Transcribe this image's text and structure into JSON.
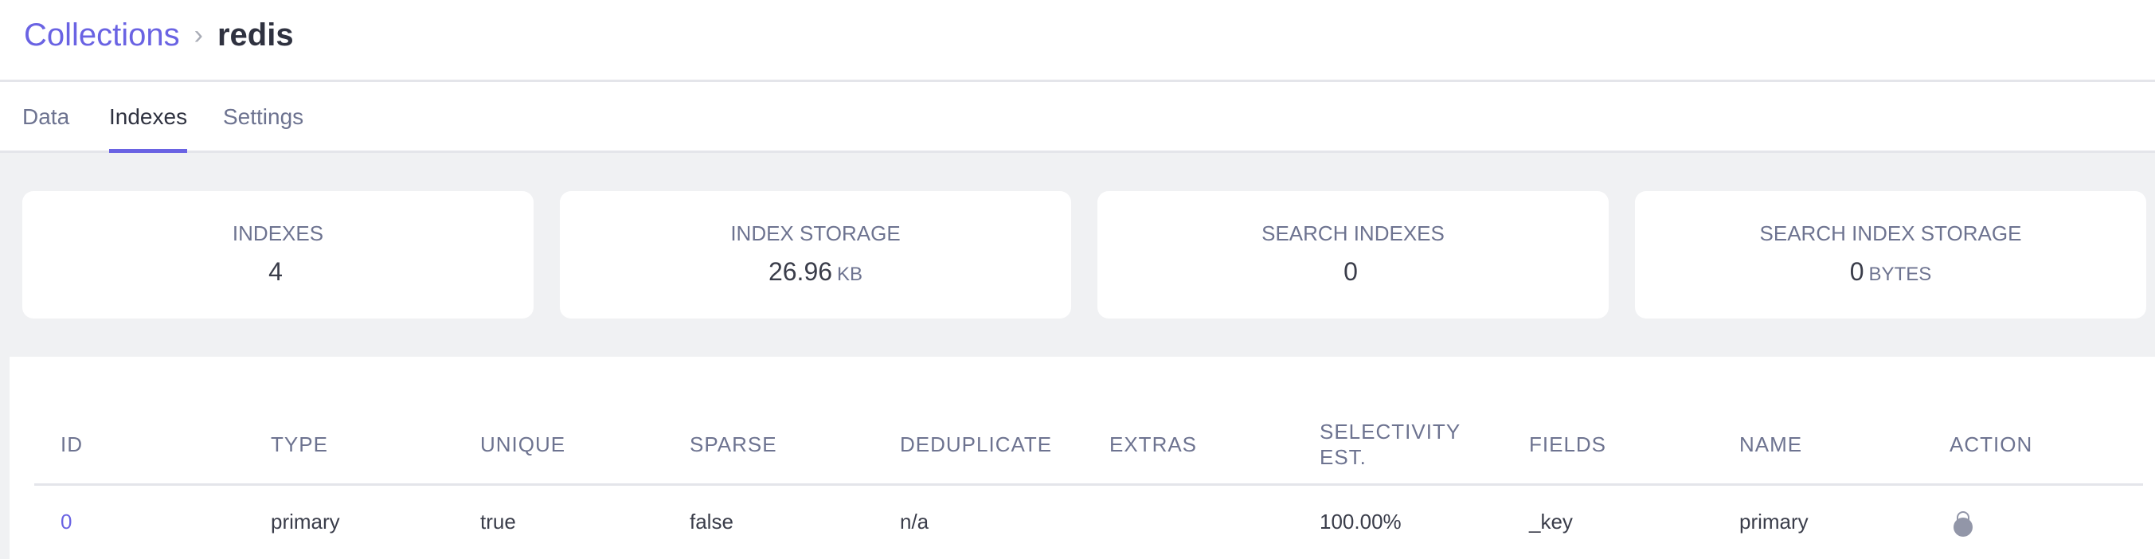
{
  "breadcrumb": {
    "parent": "Collections",
    "separator": "›",
    "current": "redis"
  },
  "tabs": [
    {
      "label": "Data"
    },
    {
      "label": "Indexes",
      "active": true
    },
    {
      "label": "Settings"
    }
  ],
  "stats": [
    {
      "label": "INDEXES",
      "value": "4",
      "unit": ""
    },
    {
      "label": "INDEX STORAGE",
      "value": "26.96",
      "unit": "KB"
    },
    {
      "label": "SEARCH INDEXES",
      "value": "0",
      "unit": ""
    },
    {
      "label": "SEARCH INDEX STORAGE",
      "value": "0",
      "unit": "BYTES"
    }
  ],
  "table": {
    "headers": [
      "ID",
      "TYPE",
      "UNIQUE",
      "SPARSE",
      "DEDUPLICATE",
      "EXTRAS",
      "SELECTIVITY EST.",
      "FIELDS",
      "NAME",
      "ACTION"
    ],
    "rows": [
      {
        "id": "0",
        "type": "primary",
        "unique": "true",
        "sparse": "false",
        "deduplicate": "n/a",
        "extras": "",
        "selectivity": "100.00%",
        "fields": "_key",
        "name": "primary",
        "action_icon": "lock-icon"
      }
    ]
  },
  "colors": {
    "accent": "#6a63e3",
    "icon": "#9296a8"
  }
}
